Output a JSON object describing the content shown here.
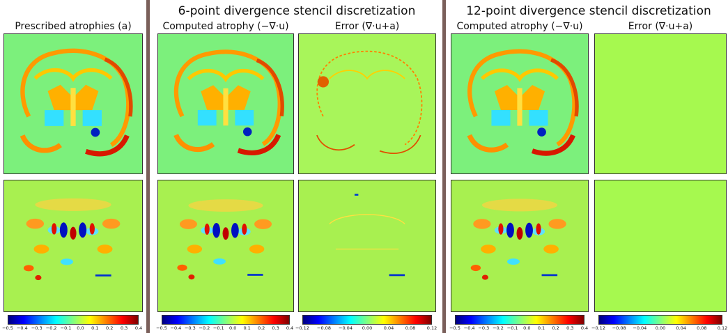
{
  "left": {
    "label": "Prescribed atrophies (a)",
    "ticks": [
      "−0.5",
      "−0.4",
      "−0.3",
      "−0.2",
      "−0.1",
      "0.0",
      "0.1",
      "0.2",
      "0.3",
      "0.4"
    ]
  },
  "groups": [
    {
      "title": "6-point divergence stencil discretization",
      "panels": [
        {
          "label": "Computed atrophy (−∇·u)",
          "ticks": [
            "−0.5",
            "−0.4",
            "−0.3",
            "−0.2",
            "−0.1",
            "0.0",
            "0.1",
            "0.2",
            "0.3",
            "0.4"
          ]
        },
        {
          "label": "Error (∇·u+a)",
          "ticks": [
            "−0.12",
            "−0.08",
            "−0.04",
            "0.00",
            "0.04",
            "0.08",
            "0.12"
          ]
        }
      ]
    },
    {
      "title": "12-point divergence stencil discretization",
      "panels": [
        {
          "label": "Computed atrophy (−∇·u)",
          "ticks": [
            "−0.5",
            "−0.4",
            "−0.3",
            "−0.2",
            "−0.1",
            "0.0",
            "0.1",
            "0.2",
            "0.3",
            "0.4"
          ]
        },
        {
          "label": "Error (∇·u+a)",
          "ticks": [
            "−0.12",
            "−0.08",
            "−0.04",
            "0.00",
            "0.04",
            "0.08",
            "0.12"
          ]
        }
      ]
    }
  ]
}
